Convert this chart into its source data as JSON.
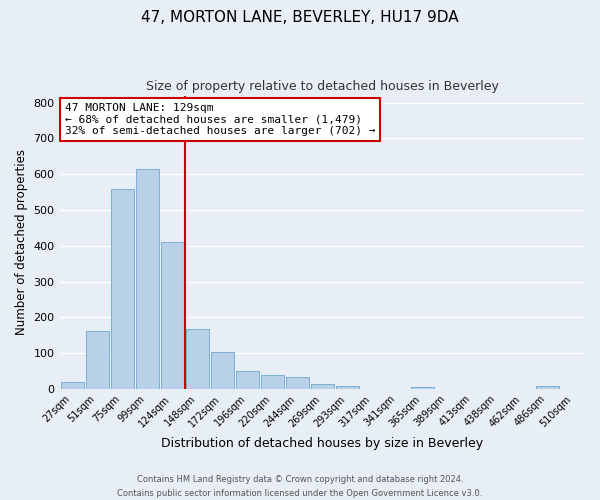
{
  "title": "47, MORTON LANE, BEVERLEY, HU17 9DA",
  "subtitle": "Size of property relative to detached houses in Beverley",
  "xlabel": "Distribution of detached houses by size in Beverley",
  "ylabel": "Number of detached properties",
  "bar_color": "#b8d0e8",
  "bar_edge_color": "#7aafd4",
  "categories": [
    "27sqm",
    "51sqm",
    "75sqm",
    "99sqm",
    "124sqm",
    "148sqm",
    "172sqm",
    "196sqm",
    "220sqm",
    "244sqm",
    "269sqm",
    "293sqm",
    "317sqm",
    "341sqm",
    "365sqm",
    "389sqm",
    "413sqm",
    "438sqm",
    "462sqm",
    "486sqm",
    "510sqm"
  ],
  "values": [
    18,
    163,
    558,
    615,
    410,
    168,
    102,
    51,
    40,
    32,
    14,
    9,
    0,
    0,
    5,
    0,
    0,
    0,
    0,
    7,
    0
  ],
  "ylim": [
    0,
    820
  ],
  "yticks": [
    0,
    100,
    200,
    300,
    400,
    500,
    600,
    700,
    800
  ],
  "vline_x_index": 4,
  "vline_color": "#cc0000",
  "annotation_title": "47 MORTON LANE: 129sqm",
  "annotation_line1": "← 68% of detached houses are smaller (1,479)",
  "annotation_line2": "32% of semi-detached houses are larger (702) →",
  "annotation_box_color": "#ffffff",
  "annotation_box_edge": "#cc0000",
  "footer_line1": "Contains HM Land Registry data © Crown copyright and database right 2024.",
  "footer_line2": "Contains public sector information licensed under the Open Government Licence v3.0.",
  "background_color": "#e8eef5",
  "grid_color": "#d0d8e8"
}
